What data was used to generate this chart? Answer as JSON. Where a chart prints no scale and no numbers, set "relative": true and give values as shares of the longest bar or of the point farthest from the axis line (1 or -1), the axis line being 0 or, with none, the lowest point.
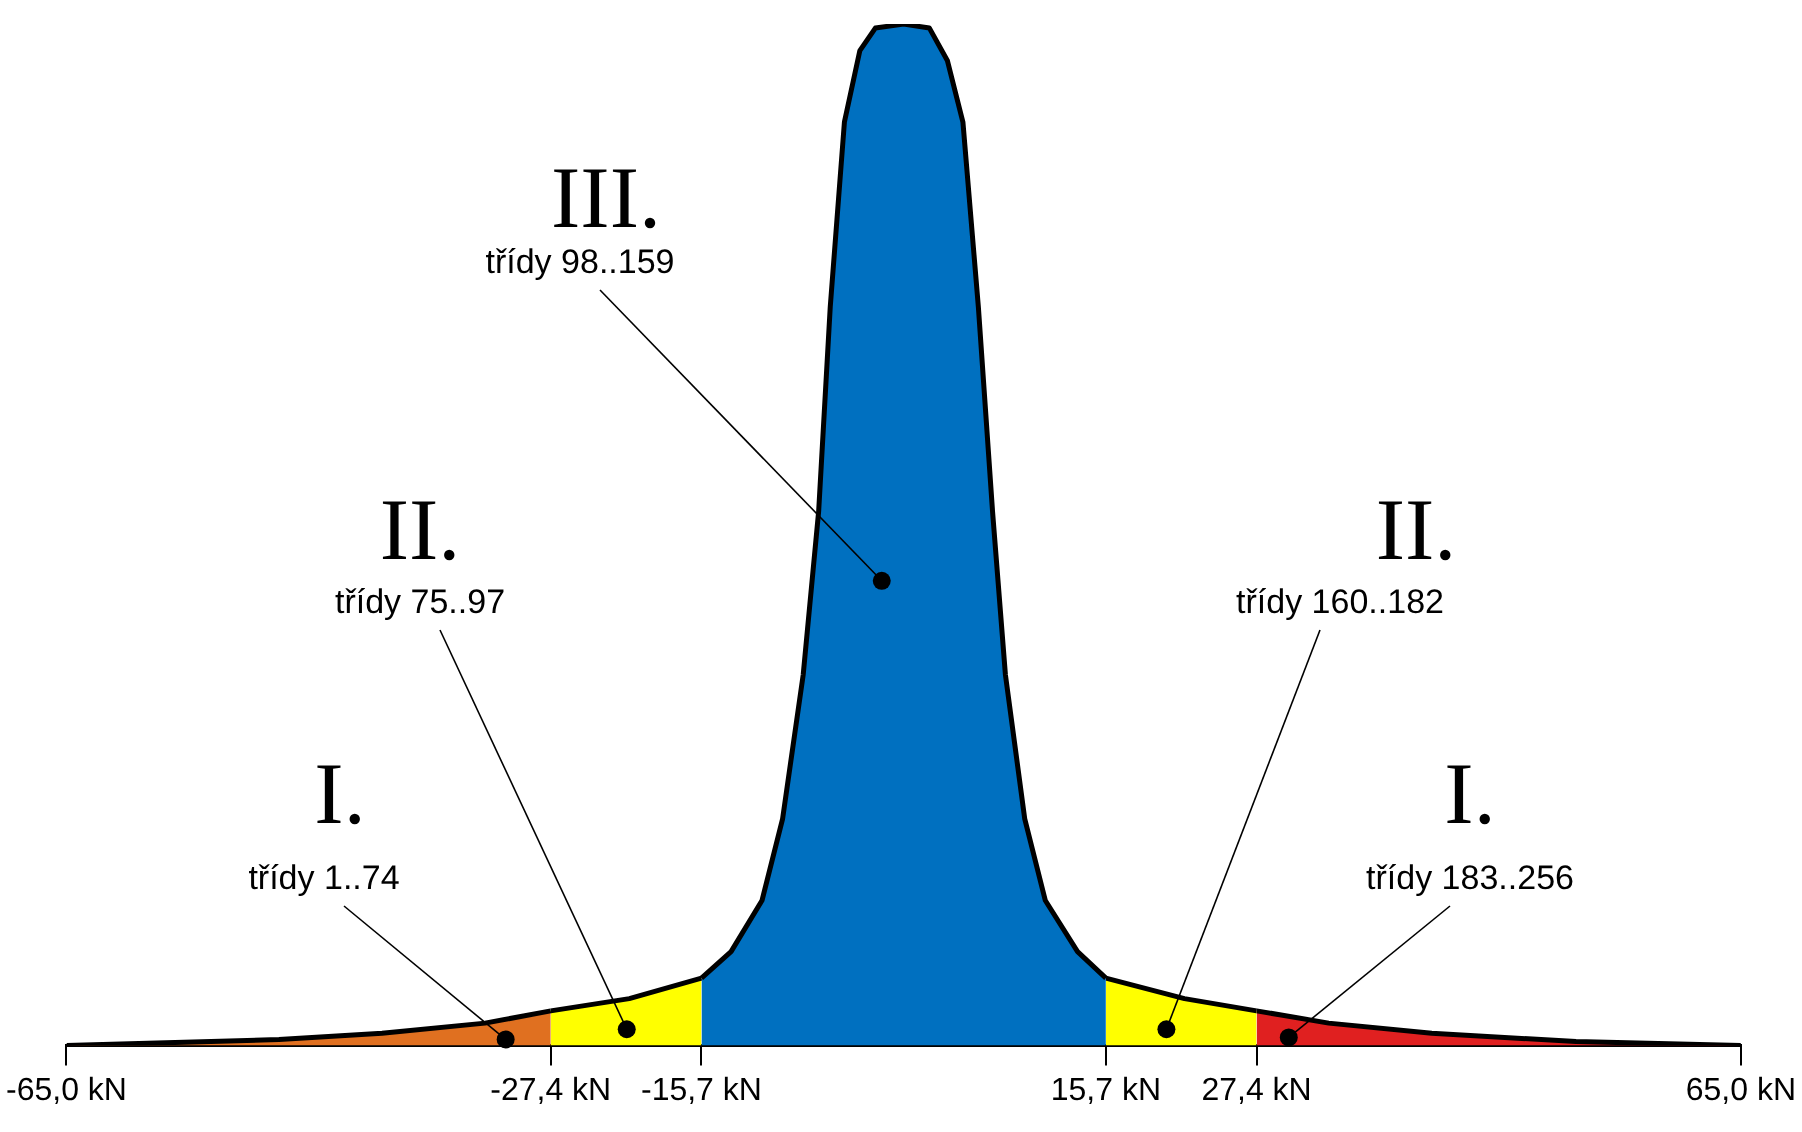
{
  "chart_data": {
    "type": "area",
    "relative": true,
    "legend": false,
    "grid": false,
    "xlim": [
      -65,
      65
    ],
    "xticks": [
      {
        "value": -65,
        "label": "-65,0 kN"
      },
      {
        "value": -27.4,
        "label": "-27,4 kN"
      },
      {
        "value": -15.7,
        "label": "-15,7 kN"
      },
      {
        "value": 15.7,
        "label": "15,7 kN"
      },
      {
        "value": 27.4,
        "label": "27,4 kN"
      },
      {
        "value": 65,
        "label": "65,0 kN"
      }
    ],
    "series": [
      {
        "color": "#e07020",
        "x": [
          -65,
          -48.5,
          -40.5,
          -32.5,
          -27.4
        ],
        "values": [
          0,
          0.006,
          0.012,
          0.022,
          0.034
        ]
      },
      {
        "color": "#ffff00",
        "x": [
          -27.4,
          -21.3,
          -15.7
        ],
        "values": [
          0.034,
          0.046,
          0.066
        ]
      },
      {
        "color": "#0070c0",
        "x": [
          -15.7,
          -13.4,
          -11.0,
          -9.4,
          -7.8,
          -6.6,
          -5.7,
          -4.6,
          -3.4,
          -2.2,
          0,
          2.0,
          3.4,
          4.6,
          5.8,
          6.9,
          7.9,
          9.4,
          11.0,
          13.5,
          15.7
        ],
        "values": [
          0.066,
          0.092,
          0.142,
          0.222,
          0.363,
          0.523,
          0.723,
          0.904,
          0.974,
          0.996,
          1,
          0.996,
          0.964,
          0.904,
          0.723,
          0.523,
          0.363,
          0.222,
          0.142,
          0.092,
          0.066
        ]
      },
      {
        "color": "#ffff00",
        "x": [
          15.7,
          21.8,
          27.4
        ],
        "values": [
          0.066,
          0.046,
          0.034
        ]
      },
      {
        "color": "#e02020",
        "x": [
          27.4,
          33.0,
          41.0,
          52.2,
          65
        ],
        "values": [
          0.034,
          0.022,
          0.012,
          0.004,
          0
        ]
      }
    ],
    "annotations": [
      "III.",
      {
        "text": "třídy 98..159",
        "x": -1.7,
        "y": 0.455
      },
      "II.",
      {
        "text": "třídy 75..97",
        "x": -21.5,
        "y": 0.016
      },
      "II.",
      {
        "text": "třídy 160..182",
        "x": 20.4,
        "y": 0.016
      },
      "I.",
      {
        "text": "třídy 1..74",
        "x": -30.9,
        "y": 0.006
      },
      "I.",
      {
        "text": "třídy 183..256",
        "x": 29.9,
        "y": 0.008
      }
    ]
  }
}
